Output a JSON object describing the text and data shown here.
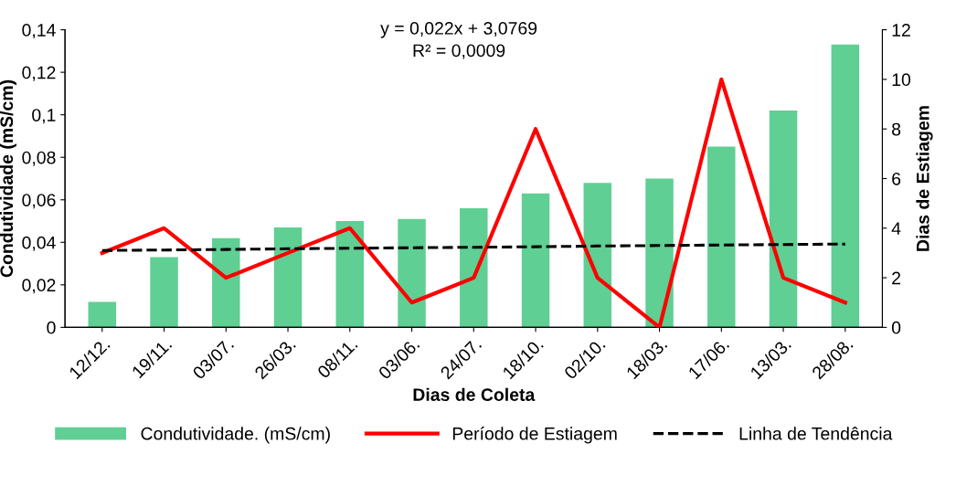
{
  "chart_data": {
    "type": "bar",
    "xlabel": "Dias de Coleta",
    "ylabel": "Condutividade (mS/cm)",
    "y2label": "Dias de Estiagem",
    "categories": [
      "12/12.",
      "19/11.",
      "03/07.",
      "26/03.",
      "08/11.",
      "03/06.",
      "24/07.",
      "18/10.",
      "02/10.",
      "18/03.",
      "17/06.",
      "13/03.",
      "28/08."
    ],
    "series": [
      {
        "name": "Condutividade. (mS/cm)",
        "color": "#5fcf94",
        "values": [
          0.012,
          0.033,
          0.042,
          0.047,
          0.05,
          0.051,
          0.056,
          0.063,
          0.068,
          0.07,
          0.085,
          0.102,
          0.133
        ]
      },
      {
        "name": "Período de Estiagem",
        "type": "line",
        "axis": "y2",
        "color": "#ff0000",
        "line_style": "solid",
        "values": [
          3,
          4,
          2,
          3,
          4,
          1,
          2,
          8,
          2,
          0,
          10,
          2,
          1
        ]
      },
      {
        "name": "Linha de Tendência",
        "type": "line",
        "axis": "y2",
        "color": "#000000",
        "line_style": "dashed",
        "values": [
          3.1,
          3.12,
          3.14,
          3.17,
          3.19,
          3.21,
          3.23,
          3.25,
          3.28,
          3.3,
          3.32,
          3.34,
          3.36
        ]
      }
    ],
    "ylim": [
      0,
      0.14
    ],
    "yticks": [
      {
        "value": 0,
        "label": "0"
      },
      {
        "value": 0.02,
        "label": "0,02"
      },
      {
        "value": 0.04,
        "label": "0,04"
      },
      {
        "value": 0.06,
        "label": "0,06"
      },
      {
        "value": 0.08,
        "label": "0,08"
      },
      {
        "value": 0.1,
        "label": "0,1"
      },
      {
        "value": 0.12,
        "label": "0,12"
      },
      {
        "value": 0.14,
        "label": "0,14"
      }
    ],
    "y2lim": [
      0,
      12
    ],
    "y2ticks": [
      0,
      2,
      4,
      6,
      8,
      10,
      12
    ],
    "annotations": [
      "y = 0,022x + 3,0769",
      "R² = 0,0009"
    ],
    "grid": false,
    "legend": "bottom"
  }
}
